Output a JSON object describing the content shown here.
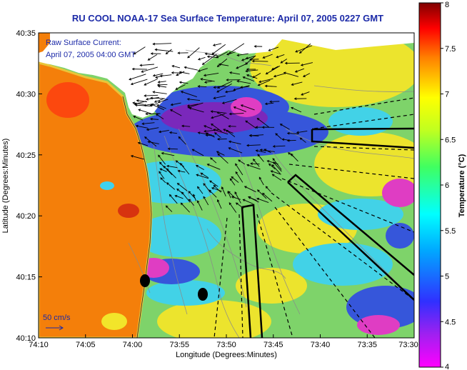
{
  "title": "RU COOL  NOAA-17  Sea Surface Temperature:  April 07, 2005 0227 GMT",
  "current_legend": {
    "line1": "Raw Surface Current:",
    "line2": "April 07, 2005 04:00 GMT",
    "scale_label": "50 cm/s"
  },
  "axes": {
    "xlabel": "Longitude (Degrees:Minutes)",
    "ylabel": "Latitude (Degrees:Minutes)",
    "xticks": [
      "74:10",
      "74:05",
      "74:00",
      "73:55",
      "73:50",
      "73:45",
      "73:40",
      "73:35",
      "73:30"
    ],
    "yticks": [
      "40:35",
      "40:30",
      "40:25",
      "40:20",
      "40:15",
      "40:10"
    ]
  },
  "colorbar": {
    "label": "Temperature (°C)",
    "ticks": [
      "8",
      "7.5",
      "7",
      "6.5",
      "6",
      "5.5",
      "5",
      "4.5",
      "4"
    ]
  },
  "colors": {
    "title": "#1c2aa8",
    "land": "#f47f0a",
    "land_coast": "#e9c53a",
    "ocean_warm": "#f2e52a",
    "ocean_mid": "#7ed36a",
    "ocean_cool": "#3fd2ee",
    "ocean_cold": "#3350e0",
    "ocean_coldest": "#7a1fc0",
    "ocean_min": "#e535c8",
    "no_data": "#ffffff"
  }
}
